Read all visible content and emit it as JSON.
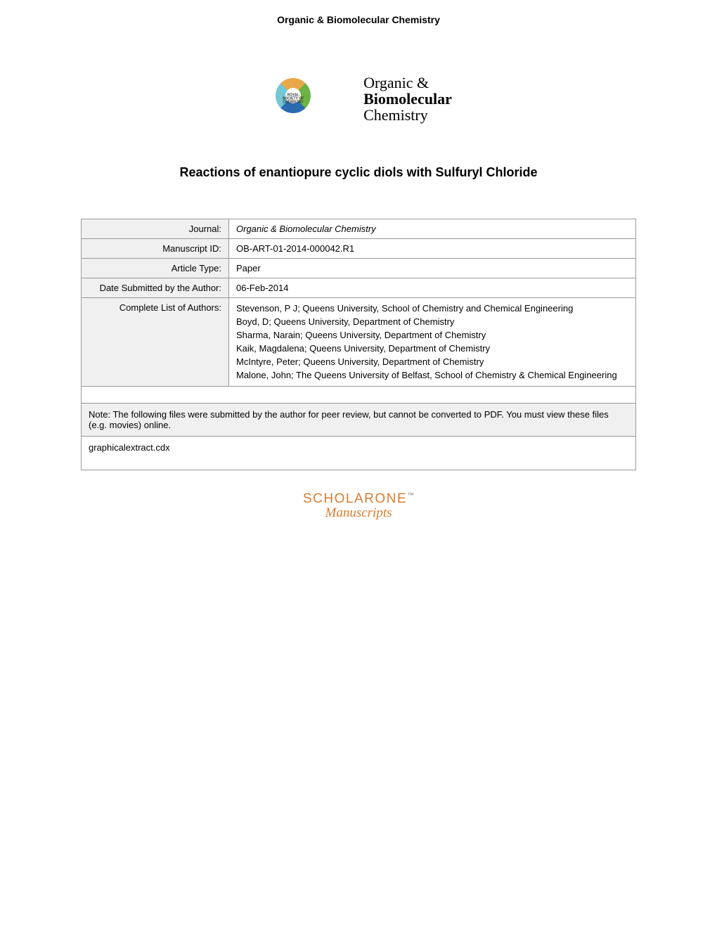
{
  "header": {
    "journal_name": "Organic & Biomolecular Chemistry"
  },
  "logos": {
    "rsc_label": "ROYAL SOCIETY OF CHEMISTRY",
    "journal_line1": "Organic &",
    "journal_line2": "Biomolecular",
    "journal_line3": "Chemistry"
  },
  "title": "Reactions of enantiopure cyclic diols with Sulfuryl Chloride",
  "table": {
    "journal": {
      "label": "Journal:",
      "value": "Organic & Biomolecular Chemistry"
    },
    "manuscript_id": {
      "label": "Manuscript ID:",
      "value": "OB-ART-01-2014-000042.R1"
    },
    "article_type": {
      "label": "Article Type:",
      "value": "Paper"
    },
    "date_submitted": {
      "label": "Date Submitted by the Author:",
      "value": "06-Feb-2014"
    },
    "authors": {
      "label": "Complete List of Authors:",
      "list": [
        "Stevenson, P J; Queens University, School of Chemistry and Chemical Engineering",
        "Boyd, D; Queens University, Department of Chemistry",
        "Sharma, Narain; Queens University, Department of Chemistry",
        "Kaik, Magdalena; Queens University, Department of Chemistry",
        "McIntyre, Peter; Queens University, Department of Chemistry",
        "Malone, John; The Queens University of Belfast, School of Chemistry & Chemical Engineering"
      ]
    },
    "note": "Note: The following files were submitted by the author for peer review, but cannot be converted to PDF.  You must view these files (e.g. movies) online.",
    "attached_file": "graphicalextract.cdx"
  },
  "footer": {
    "scholarone": "SCHOLARONE",
    "tm": "™",
    "manuscripts": "Manuscripts"
  }
}
